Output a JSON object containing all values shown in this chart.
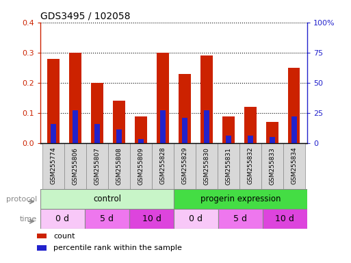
{
  "title": "GDS3495 / 102058",
  "samples": [
    "GSM255774",
    "GSM255806",
    "GSM255807",
    "GSM255808",
    "GSM255809",
    "GSM255828",
    "GSM255829",
    "GSM255830",
    "GSM255831",
    "GSM255832",
    "GSM255833",
    "GSM255834"
  ],
  "red_values": [
    0.28,
    0.3,
    0.2,
    0.14,
    0.09,
    0.3,
    0.23,
    0.29,
    0.09,
    0.12,
    0.07,
    0.25
  ],
  "blue_values": [
    0.065,
    0.11,
    0.065,
    0.045,
    0.015,
    0.11,
    0.085,
    0.11,
    0.025,
    0.025,
    0.022,
    0.09
  ],
  "ylim_left": [
    0,
    0.4
  ],
  "ylim_right": [
    0,
    100
  ],
  "yticks_left": [
    0,
    0.1,
    0.2,
    0.3,
    0.4
  ],
  "yticks_right": [
    0,
    25,
    50,
    75,
    100
  ],
  "ytick_labels_right": [
    "0",
    "25",
    "50",
    "75",
    "100%"
  ],
  "protocol_labels": [
    "control",
    "progerin expression"
  ],
  "protocol_colors": [
    "#c8f5c8",
    "#44dd44"
  ],
  "time_colors": [
    "#f8c8f8",
    "#ee77ee",
    "#dd44dd",
    "#f8c8f8",
    "#ee77ee",
    "#dd44dd"
  ],
  "time_labels": [
    "0 d",
    "5 d",
    "10 d",
    "0 d",
    "5 d",
    "10 d"
  ],
  "time_spans_start": [
    0,
    2,
    4,
    6,
    8,
    10
  ],
  "time_spans_width": [
    2,
    2,
    2,
    2,
    2,
    2
  ],
  "bar_color_red": "#cc2200",
  "bar_color_blue": "#2222cc",
  "bar_width": 0.55,
  "background_color": "#ffffff",
  "tick_label_color_left": "#cc2200",
  "tick_label_color_right": "#2222cc",
  "xlabel_area_color": "#d8d8d8",
  "legend_items": [
    "count",
    "percentile rank within the sample"
  ]
}
